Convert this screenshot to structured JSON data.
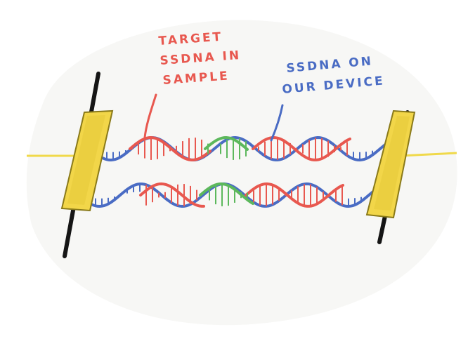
{
  "labels": {
    "target": [
      "TARGET",
      "SSDNA IN",
      "SAMPLE"
    ],
    "device": [
      "SSDNA ON",
      "OUR DEVICE"
    ]
  },
  "colors": {
    "target": "#e8584f",
    "device": "#4a6cc4",
    "middle": "#5cb85c",
    "electrode": "#f2d649",
    "electrode_edge": "#8a7a1a",
    "wire": "#1a1a1a",
    "wire_yellow": "#f0d94a",
    "background_blob": "#f4f4f2"
  }
}
